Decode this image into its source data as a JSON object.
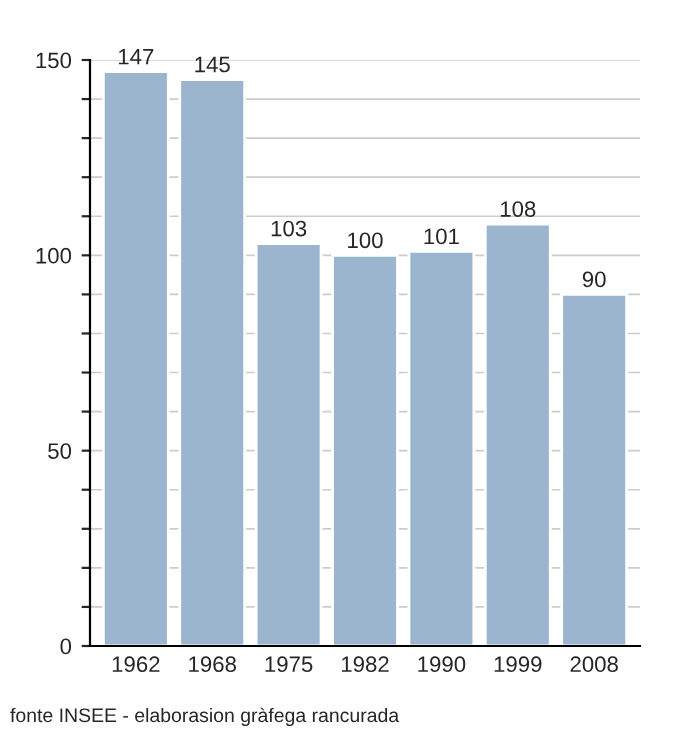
{
  "chart_data": {
    "type": "bar",
    "categories": [
      "1962",
      "1968",
      "1975",
      "1982",
      "1990",
      "1999",
      "2008"
    ],
    "values": [
      147,
      145,
      103,
      100,
      101,
      108,
      90
    ],
    "color": "#9bb5cf",
    "data_labels": true,
    "ylim": [
      0,
      150
    ],
    "yticks": [
      0,
      {
        "value": 10,
        "label": null
      },
      {
        "value": 20,
        "label": null
      },
      {
        "value": 30,
        "label": null
      },
      {
        "value": 40,
        "label": null
      },
      50,
      {
        "value": 60,
        "label": null
      },
      {
        "value": 70,
        "label": null
      },
      {
        "value": 80,
        "label": null
      },
      {
        "value": 90,
        "label": null
      },
      100,
      {
        "value": 110,
        "label": null
      },
      {
        "value": 120,
        "label": null
      },
      {
        "value": 130,
        "label": null
      },
      {
        "value": 140,
        "label": null
      },
      150
    ],
    "grid": "y",
    "legend": false,
    "annotations": [
      "fonte INSEE - elaborasion gràfega rancurada"
    ]
  }
}
